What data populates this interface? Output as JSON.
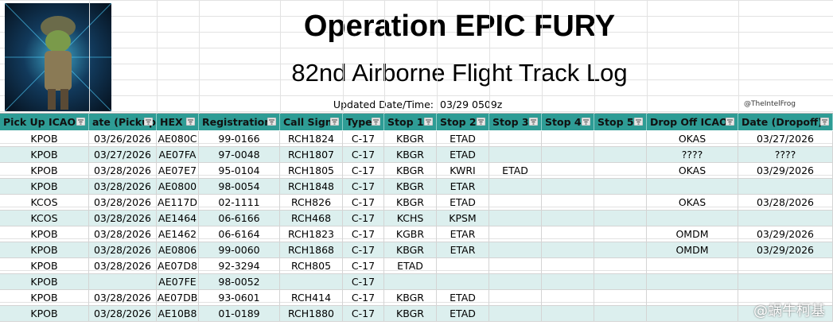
{
  "header": {
    "title": "Operation EPIC FURY",
    "subtitle": "82nd Airborne Flight Track Log",
    "updated_label": "Updated Date/Time:",
    "updated_value": "03/29 0509z",
    "credit": "@TheIntelFrog"
  },
  "table": {
    "columns": [
      "Pick Up ICAO",
      "ate (Pickup",
      "HEX",
      "Registration",
      "Call Sign",
      "Type",
      "Stop 1",
      "Stop 2",
      "Stop 3",
      "Stop 4",
      "Stop 5",
      "Drop Off ICAO",
      "Date (Dropoff)"
    ],
    "rows": [
      [
        "KPOB",
        "03/26/2026",
        "AE080C",
        "99-0166",
        "RCH1824",
        "C-17",
        "KBGR",
        "ETAD",
        null,
        null,
        null,
        "OKAS",
        "03/27/2026"
      ],
      [
        "KPOB",
        "03/27/2026",
        "AE07FA",
        "97-0048",
        "RCH1807",
        "C-17",
        "KBGR",
        "ETAD",
        null,
        null,
        null,
        "????",
        "????"
      ],
      [
        "KPOB",
        "03/28/2026",
        "AE07E7",
        "95-0104",
        "RCH1805",
        "C-17",
        "KBGR",
        "KWRI",
        "ETAD",
        null,
        null,
        "OKAS",
        "03/29/2026"
      ],
      [
        "KPOB",
        "03/28/2026",
        "AE0800",
        "98-0054",
        "RCH1848",
        "C-17",
        "KBGR",
        "ETAR",
        null,
        null,
        null,
        null,
        null
      ],
      [
        "KCOS",
        "03/28/2026",
        "AE117D",
        "02-1111",
        "RCH826",
        "C-17",
        "KBGR",
        "ETAD",
        null,
        null,
        null,
        "OKAS",
        "03/28/2026"
      ],
      [
        "KCOS",
        "03/28/2026",
        "AE1464",
        "06-6166",
        "RCH468",
        "C-17",
        "KCHS",
        "KPSM",
        null,
        null,
        null,
        null,
        null
      ],
      [
        "KPOB",
        "03/28/2026",
        "AE1462",
        "06-6164",
        "RCH1823",
        "C-17",
        "KGBR",
        "ETAR",
        null,
        null,
        null,
        "OMDM",
        "03/29/2026"
      ],
      [
        "KPOB",
        "03/28/2026",
        "AE0806",
        "99-0060",
        "RCH1868",
        "C-17",
        "KBGR",
        "ETAR",
        null,
        null,
        null,
        "OMDM",
        "03/29/2026"
      ],
      [
        "KPOB",
        "03/28/2026",
        "AE07D8",
        "92-3294",
        "RCH805",
        "C-17",
        "ETAD",
        null,
        null,
        null,
        null,
        null,
        null
      ],
      [
        "KPOB",
        null,
        "AE07FE",
        "98-0052",
        null,
        "C-17",
        null,
        null,
        null,
        null,
        null,
        null,
        null
      ],
      [
        "KPOB",
        "03/28/2026",
        "AE07DB",
        "93-0601",
        "RCH414",
        "C-17",
        "KBGR",
        "ETAD",
        null,
        null,
        null,
        null,
        null
      ],
      [
        "KPOB",
        "03/28/2026",
        "AE10B8",
        "01-0189",
        "RCH1880",
        "C-17",
        "KBGR",
        "ETAD",
        null,
        null,
        null,
        null,
        null
      ]
    ]
  },
  "watermark": "@蜗牛柯基"
}
